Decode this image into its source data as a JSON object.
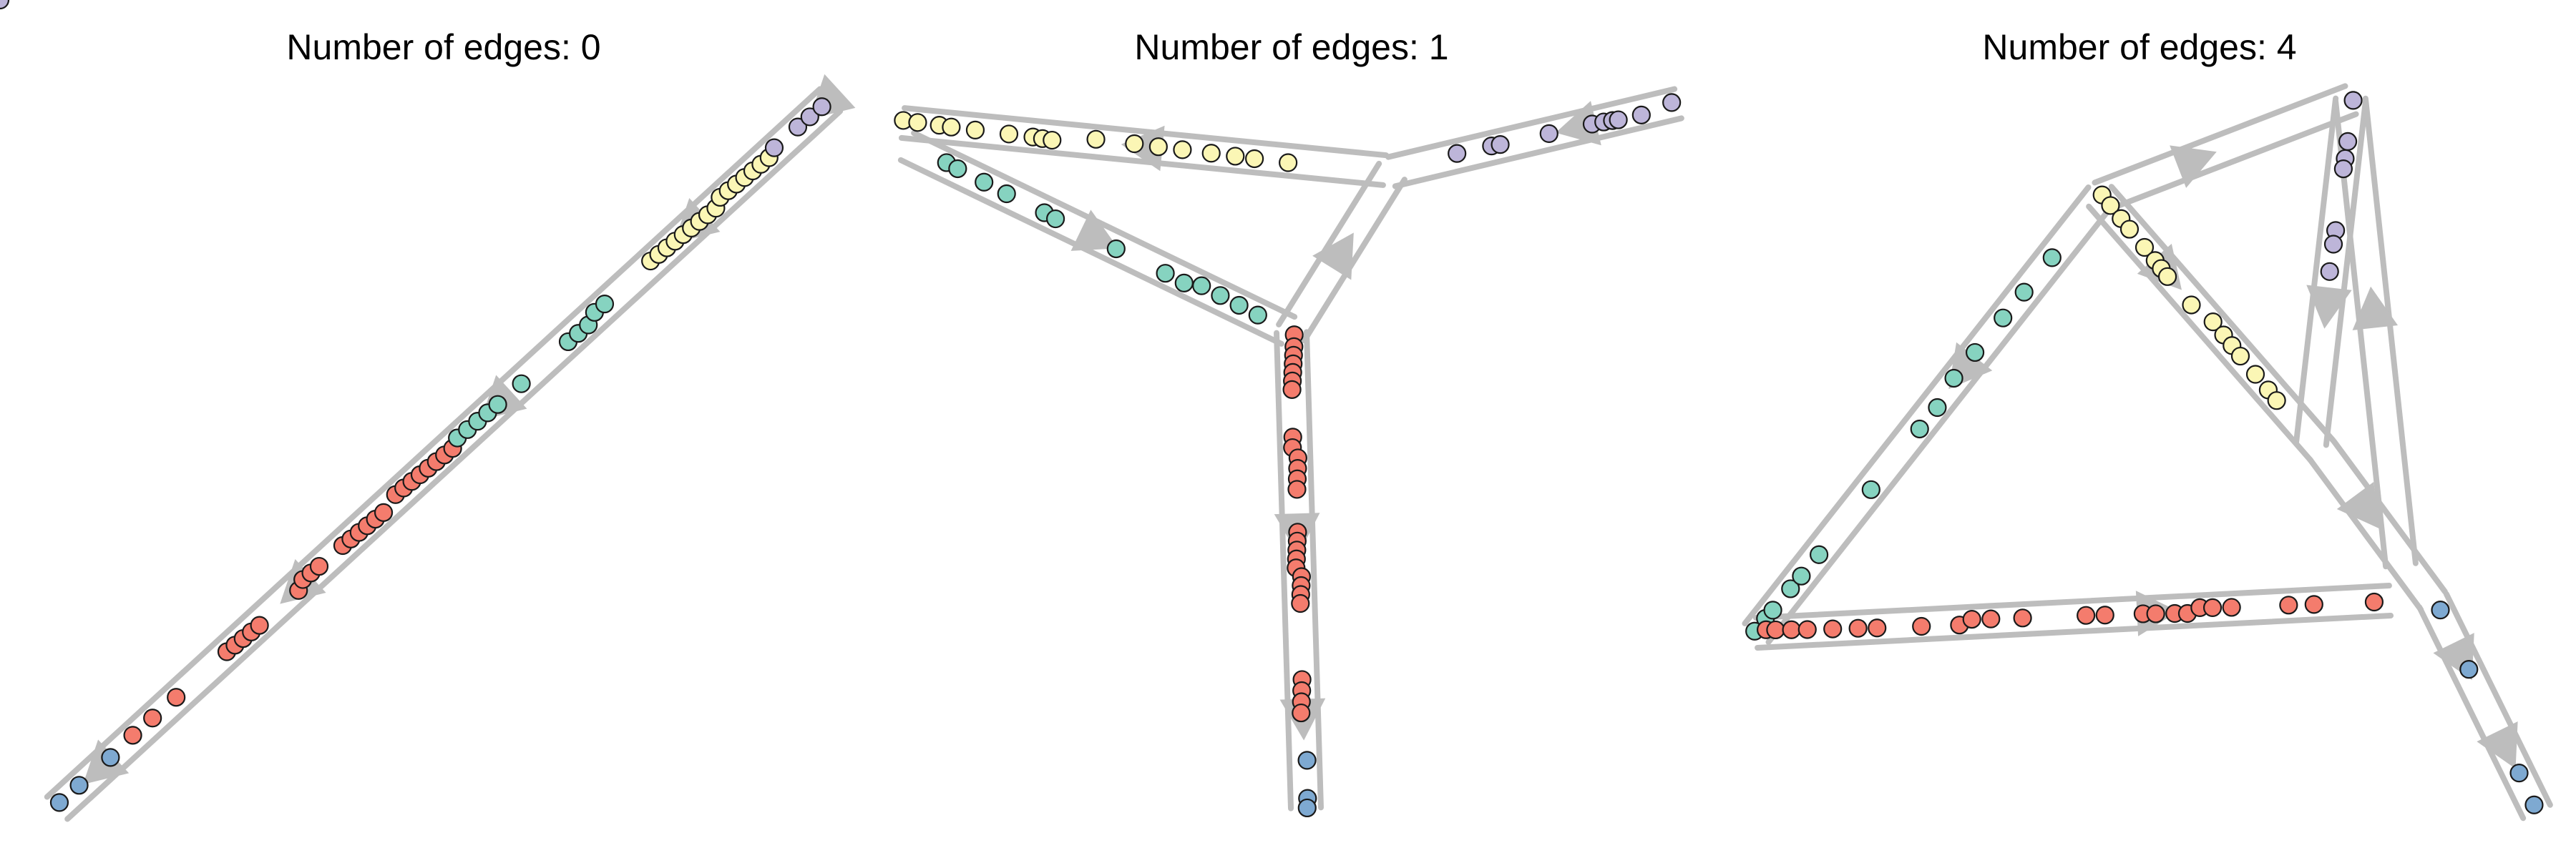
{
  "colors": {
    "edge": "#bdbdbd",
    "red": "#f47c6d",
    "teal": "#86d3c0",
    "yellow": "#fbf6b5",
    "purple": "#bdb5d9",
    "blue": "#7ea9d1",
    "outline": "#1a1a1a"
  },
  "panels": [
    {
      "title": "Number of edges: 0"
    },
    {
      "title": "Number of edges: 1"
    },
    {
      "title": "Number of edges: 4"
    }
  ]
}
